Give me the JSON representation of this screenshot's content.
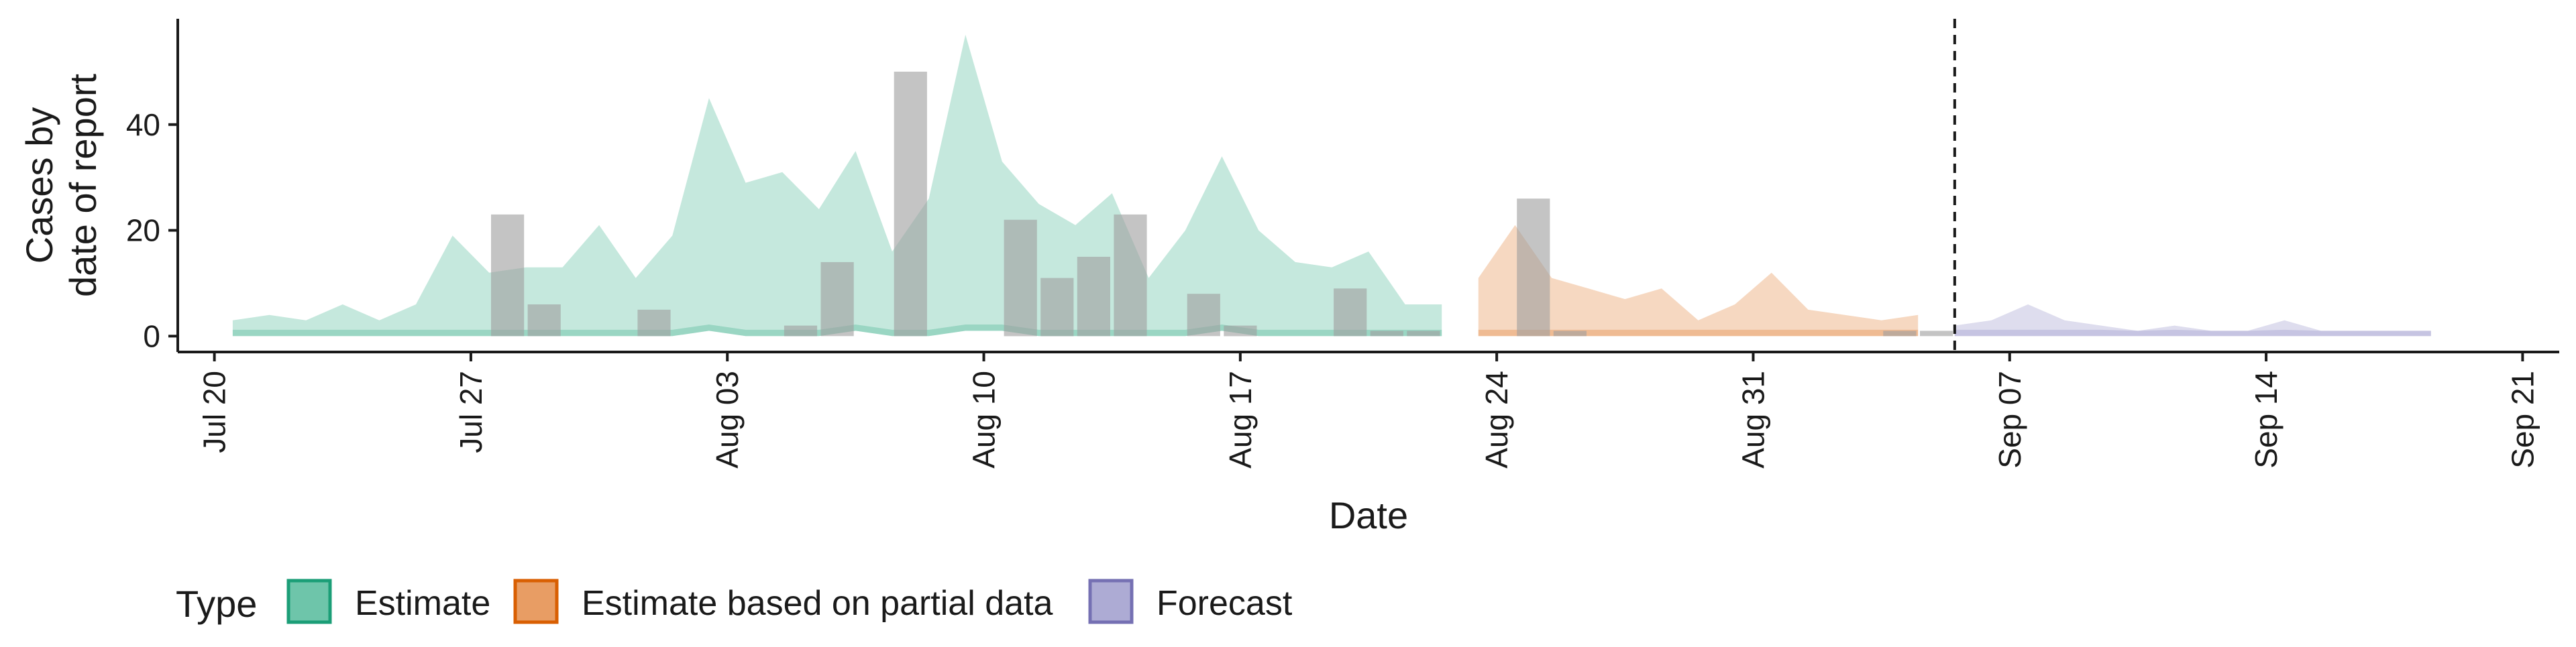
{
  "chart_data": {
    "type": "area",
    "xlabel": "Date",
    "ylabel_lines": [
      "Cases by",
      "date of report"
    ],
    "x_ticks": [
      "Jul 20",
      "Jul 27",
      "Aug 03",
      "Aug 10",
      "Aug 17",
      "Aug 24",
      "Aug 31",
      "Sep 07",
      "Sep 14",
      "Sep 21"
    ],
    "x_tick_dates": [
      "2020-07-20",
      "2020-07-27",
      "2020-08-03",
      "2020-08-10",
      "2020-08-17",
      "2020-08-24",
      "2020-08-31",
      "2020-09-07",
      "2020-09-14",
      "2020-09-21"
    ],
    "y_ticks": [
      "0",
      "20",
      "40"
    ],
    "y_tick_values": [
      0,
      20,
      40
    ],
    "xlim": [
      "2020-07-19",
      "2020-09-22"
    ],
    "ylim": [
      -3,
      60
    ],
    "forecast_date": "2020-09-05",
    "grid": false,
    "legend": {
      "title": "Type",
      "position": "bottom",
      "entries": [
        {
          "label": "Estimate",
          "fill": "#66c2a5",
          "stroke": "#1b9e77"
        },
        {
          "label": "Estimate based on partial data",
          "fill": "#e7985c",
          "stroke": "#d95f02"
        },
        {
          "label": "Forecast",
          "fill": "#a9a6d2",
          "stroke": "#7570b3"
        }
      ]
    },
    "observed_cases": {
      "color": "#a0a0a0",
      "dates": [
        "2020-07-28",
        "2020-07-29",
        "2020-08-01",
        "2020-08-05",
        "2020-08-06",
        "2020-08-08",
        "2020-08-11",
        "2020-08-12",
        "2020-08-13",
        "2020-08-14",
        "2020-08-16",
        "2020-08-17",
        "2020-08-20",
        "2020-08-21",
        "2020-08-22",
        "2020-08-25",
        "2020-08-26",
        "2020-09-04",
        "2020-09-05"
      ],
      "values": [
        23,
        6,
        5,
        2,
        14,
        50,
        22,
        11,
        15,
        23,
        8,
        2,
        9,
        1,
        1,
        26,
        1,
        1,
        1
      ]
    },
    "series": [
      {
        "name": "Estimate",
        "color": "#66c2a5",
        "dates": [
          "2020-07-21",
          "2020-07-22",
          "2020-07-23",
          "2020-07-24",
          "2020-07-25",
          "2020-07-26",
          "2020-07-27",
          "2020-07-28",
          "2020-07-29",
          "2020-07-30",
          "2020-07-31",
          "2020-08-01",
          "2020-08-02",
          "2020-08-03",
          "2020-08-04",
          "2020-08-05",
          "2020-08-06",
          "2020-08-07",
          "2020-08-08",
          "2020-08-09",
          "2020-08-10",
          "2020-08-11",
          "2020-08-12",
          "2020-08-13",
          "2020-08-14",
          "2020-08-15",
          "2020-08-16",
          "2020-08-17",
          "2020-08-18",
          "2020-08-19",
          "2020-08-20",
          "2020-08-21",
          "2020-08-22",
          "2020-08-23"
        ],
        "upper": [
          3,
          4,
          3,
          6,
          3,
          6,
          19,
          12,
          13,
          13,
          21,
          11,
          19,
          45,
          29,
          31,
          24,
          35,
          16,
          26,
          57,
          33,
          25,
          21,
          27,
          11,
          20,
          34,
          20,
          14,
          13,
          16,
          6,
          6
        ],
        "lower": [
          0,
          0,
          0,
          0,
          0,
          0,
          0,
          0,
          0,
          0,
          0,
          0,
          0,
          1,
          0,
          0,
          0,
          1,
          0,
          0,
          1,
          1,
          0,
          0,
          0,
          0,
          0,
          1,
          0,
          0,
          0,
          0,
          0,
          0
        ]
      },
      {
        "name": "Estimate based on partial data",
        "color": "#e7985c",
        "dates": [
          "2020-08-24",
          "2020-08-25",
          "2020-08-26",
          "2020-08-27",
          "2020-08-28",
          "2020-08-29",
          "2020-08-30",
          "2020-08-31",
          "2020-09-01",
          "2020-09-02",
          "2020-09-03",
          "2020-09-04",
          "2020-09-05"
        ],
        "upper": [
          11,
          21,
          11,
          9,
          7,
          9,
          3,
          6,
          12,
          5,
          4,
          3,
          4
        ],
        "lower": [
          0,
          0,
          0,
          0,
          0,
          0,
          0,
          0,
          0,
          0,
          0,
          0,
          0
        ]
      },
      {
        "name": "Forecast",
        "color": "#a9a6d2",
        "dates": [
          "2020-09-06",
          "2020-09-07",
          "2020-09-08",
          "2020-09-09",
          "2020-09-10",
          "2020-09-11",
          "2020-09-12",
          "2020-09-13",
          "2020-09-14",
          "2020-09-15",
          "2020-09-16",
          "2020-09-17",
          "2020-09-18",
          "2020-09-19"
        ],
        "upper": [
          2,
          3,
          6,
          3,
          2,
          1,
          2,
          1,
          1,
          3,
          1,
          1,
          1,
          1
        ],
        "lower": [
          0,
          0,
          0,
          0,
          0,
          0,
          0,
          0,
          0,
          0,
          0,
          0,
          0,
          0
        ]
      }
    ]
  }
}
